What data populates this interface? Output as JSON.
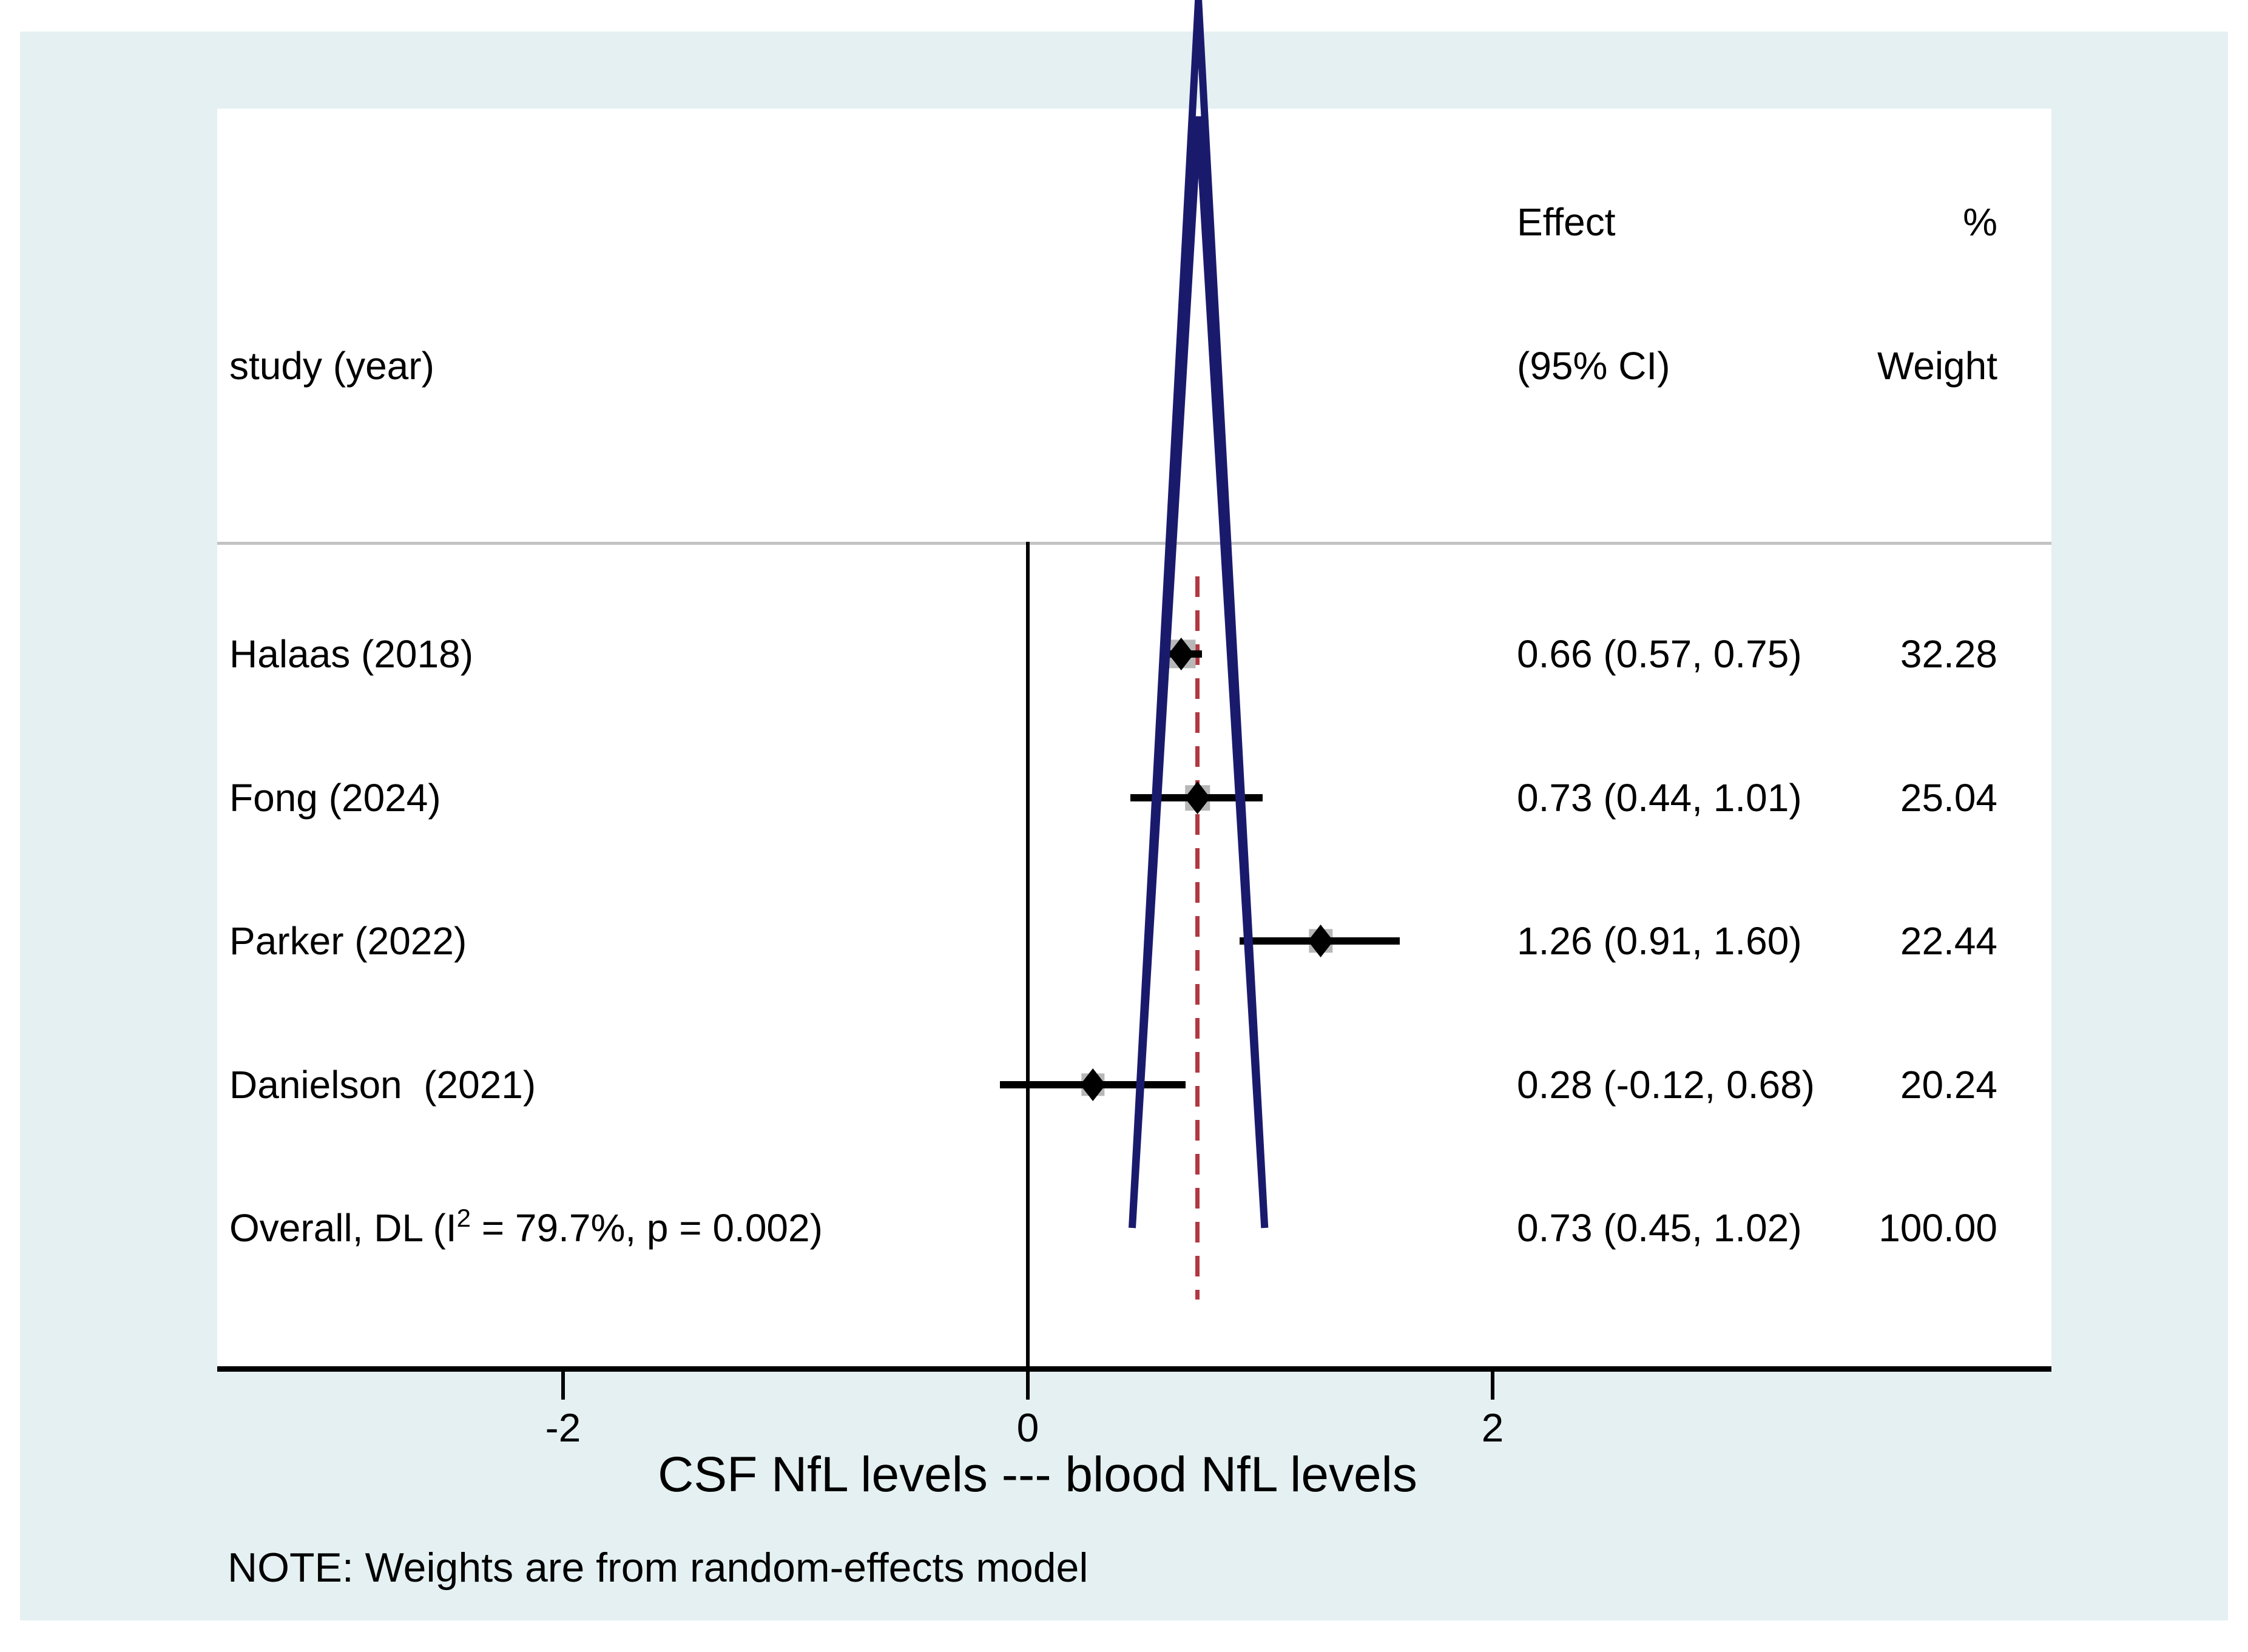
{
  "colors": {
    "background": "#e4f0f1",
    "plot_background": "#ffffff",
    "text": "#000000",
    "separator_line": "#c3c3c3",
    "axis_line": "#000000",
    "pooled_effect_line": "#b23842",
    "ci_line": "#000000",
    "point_marker": "#000000",
    "weight_box": "#b7b7b7",
    "diamond_outline": "#1a1a6d"
  },
  "header": {
    "study": "study (year)",
    "effect_top": "Effect",
    "effect_bottom": "(95% CI)",
    "weight_top": "%",
    "weight_bottom": "Weight"
  },
  "chart_data": {
    "type": "forest",
    "xlabel": "CSF NfL levels --- blood NfL levels",
    "x_ticks": [
      {
        "value": -2,
        "label": "-2"
      },
      {
        "value": 0,
        "label": "0"
      },
      {
        "value": 2,
        "label": "2"
      }
    ],
    "zero_line_x": 0,
    "pooled_effect_line_x": 0.73,
    "studies": [
      {
        "label": "Halaas (2018)",
        "effect": 0.66,
        "ci_lo": 0.57,
        "ci_hi": 0.75,
        "weight": 32.28,
        "effect_label": "0.66 (0.57, 0.75)",
        "weight_label": "32.28"
      },
      {
        "label": "Fong (2024)",
        "effect": 0.73,
        "ci_lo": 0.44,
        "ci_hi": 1.01,
        "weight": 25.04,
        "effect_label": "0.73 (0.44, 1.01)",
        "weight_label": "25.04"
      },
      {
        "label": "Parker (2022)",
        "effect": 1.26,
        "ci_lo": 0.91,
        "ci_hi": 1.6,
        "weight": 22.44,
        "effect_label": "1.26 (0.91, 1.60)",
        "weight_label": "22.44"
      },
      {
        "label": "Danielson  (2021)",
        "effect": 0.28,
        "ci_lo": -0.12,
        "ci_hi": 0.68,
        "weight": 20.24,
        "effect_label": "0.28 (-0.12, 0.68)",
        "weight_label": "20.24"
      }
    ],
    "overall": {
      "label_prefix": "Overall, DL (I",
      "label_sup": "2",
      "label_suffix": " = 79.7%, p = 0.002)",
      "effect": 0.73,
      "ci_lo": 0.45,
      "ci_hi": 1.02,
      "weight": 100.0,
      "effect_label": "0.73 (0.45, 1.02)",
      "weight_label": "100.00"
    },
    "note": "NOTE: Weights are from random-effects model",
    "legend_position": "none",
    "grid": false
  }
}
